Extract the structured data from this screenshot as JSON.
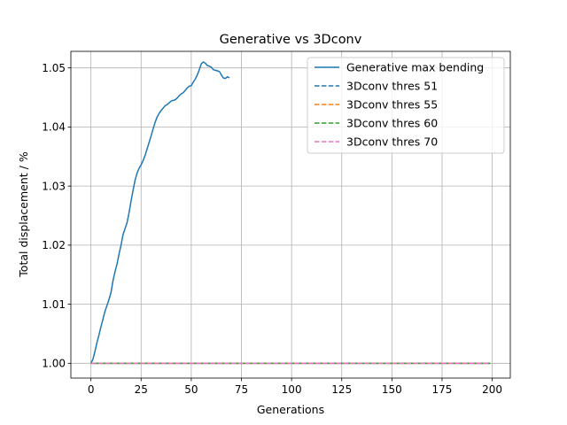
{
  "chart_data": {
    "type": "line",
    "title": "Generative vs 3Dconv",
    "xlabel": "Generations",
    "ylabel": "Total displacement / %",
    "xlim": [
      -10,
      209
    ],
    "ylim": [
      0.9975,
      1.0528
    ],
    "xticks": [
      0,
      25,
      50,
      75,
      100,
      125,
      150,
      175,
      200
    ],
    "yticks": [
      1.0,
      1.01,
      1.02,
      1.03,
      1.04,
      1.05
    ],
    "xtick_labels": [
      "0",
      "25",
      "50",
      "75",
      "100",
      "125",
      "150",
      "175",
      "200"
    ],
    "ytick_labels": [
      "1.00",
      "1.01",
      "1.02",
      "1.03",
      "1.04",
      "1.05"
    ],
    "grid": true,
    "legend": "top-right",
    "series": [
      {
        "name": "Generative max bending",
        "color": "#1f77b4",
        "style": "solid",
        "x": [
          0,
          1,
          2,
          3,
          4,
          5,
          6,
          7,
          8,
          9,
          10,
          11,
          12,
          13,
          14,
          15,
          16,
          17,
          18,
          19,
          20,
          21,
          22,
          23,
          24,
          25,
          26,
          27,
          28,
          29,
          30,
          31,
          32,
          33,
          34,
          35,
          36,
          37,
          38,
          39,
          40,
          41,
          42,
          43,
          44,
          45,
          46,
          47,
          48,
          49,
          50,
          51,
          52,
          53,
          54,
          55,
          56,
          57,
          58,
          59,
          60,
          61,
          62,
          63,
          64,
          65,
          66,
          67,
          68,
          69
        ],
        "y": [
          1.0,
          1.0007,
          1.002,
          1.0035,
          1.0048,
          1.0062,
          1.0075,
          1.0088,
          1.0098,
          1.0108,
          1.012,
          1.014,
          1.0155,
          1.0168,
          1.0185,
          1.02,
          1.0218,
          1.0228,
          1.0238,
          1.0255,
          1.0275,
          1.0293,
          1.031,
          1.0322,
          1.033,
          1.0336,
          1.0343,
          1.0352,
          1.0363,
          1.0374,
          1.0385,
          1.0397,
          1.0408,
          1.0417,
          1.0423,
          1.0428,
          1.0432,
          1.0436,
          1.0438,
          1.0441,
          1.0444,
          1.0445,
          1.0446,
          1.0449,
          1.0453,
          1.0456,
          1.0458,
          1.0462,
          1.0466,
          1.0469,
          1.047,
          1.0476,
          1.0481,
          1.0488,
          1.0497,
          1.0507,
          1.051,
          1.0508,
          1.0504,
          1.0503,
          1.0501,
          1.0497,
          1.0496,
          1.0495,
          1.0494,
          1.0488,
          1.0483,
          1.0482,
          1.0485,
          1.0483
        ]
      },
      {
        "name": "3Dconv thres 51",
        "color": "#1f77b4",
        "style": "dashed",
        "x": [
          0,
          199
        ],
        "y": [
          1.0,
          1.0
        ]
      },
      {
        "name": "3Dconv thres 55",
        "color": "#ff7f0e",
        "style": "dashed",
        "x": [
          0,
          199
        ],
        "y": [
          1.0,
          1.0
        ]
      },
      {
        "name": "3Dconv thres 60",
        "color": "#2ca02c",
        "style": "dashed",
        "x": [
          0,
          199
        ],
        "y": [
          1.0,
          1.0
        ]
      },
      {
        "name": "3Dconv thres 70",
        "color": "#e377c2",
        "style": "dashed",
        "x": [
          0,
          199
        ],
        "y": [
          1.0,
          1.0
        ]
      }
    ]
  }
}
